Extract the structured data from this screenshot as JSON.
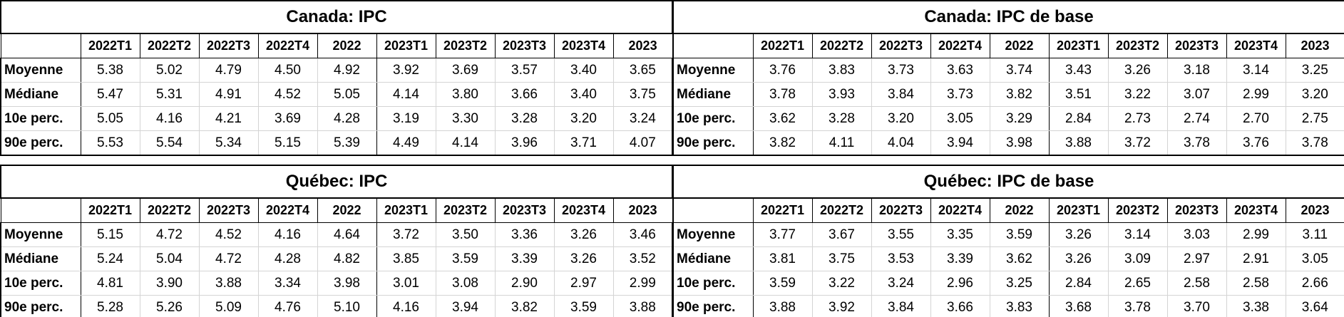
{
  "tables": [
    {
      "title": "Canada: IPC",
      "columns": [
        "2022T1",
        "2022T2",
        "2022T3",
        "2022T4",
        "2022",
        "2023T1",
        "2023T2",
        "2023T3",
        "2023T4",
        "2023"
      ],
      "rows": [
        {
          "label": "Moyenne",
          "values": [
            "5.38",
            "5.02",
            "4.79",
            "4.50",
            "4.92",
            "3.92",
            "3.69",
            "3.57",
            "3.40",
            "3.65"
          ]
        },
        {
          "label": "Médiane",
          "values": [
            "5.47",
            "5.31",
            "4.91",
            "4.52",
            "5.05",
            "4.14",
            "3.80",
            "3.66",
            "3.40",
            "3.75"
          ]
        },
        {
          "label": "10e perc.",
          "values": [
            "5.05",
            "4.16",
            "4.21",
            "3.69",
            "4.28",
            "3.19",
            "3.30",
            "3.28",
            "3.20",
            "3.24"
          ]
        },
        {
          "label": "90e perc.",
          "values": [
            "5.53",
            "5.54",
            "5.34",
            "5.15",
            "5.39",
            "4.49",
            "4.14",
            "3.96",
            "3.71",
            "4.07"
          ]
        }
      ]
    },
    {
      "title": "Canada: IPC de base",
      "columns": [
        "2022T1",
        "2022T2",
        "2022T3",
        "2022T4",
        "2022",
        "2023T1",
        "2023T2",
        "2023T3",
        "2023T4",
        "2023"
      ],
      "rows": [
        {
          "label": "Moyenne",
          "values": [
            "3.76",
            "3.83",
            "3.73",
            "3.63",
            "3.74",
            "3.43",
            "3.26",
            "3.18",
            "3.14",
            "3.25"
          ]
        },
        {
          "label": "Médiane",
          "values": [
            "3.78",
            "3.93",
            "3.84",
            "3.73",
            "3.82",
            "3.51",
            "3.22",
            "3.07",
            "2.99",
            "3.20"
          ]
        },
        {
          "label": "10e perc.",
          "values": [
            "3.62",
            "3.28",
            "3.20",
            "3.05",
            "3.29",
            "2.84",
            "2.73",
            "2.74",
            "2.70",
            "2.75"
          ]
        },
        {
          "label": "90e perc.",
          "values": [
            "3.82",
            "4.11",
            "4.04",
            "3.94",
            "3.98",
            "3.88",
            "3.72",
            "3.78",
            "3.76",
            "3.78"
          ]
        }
      ]
    },
    {
      "title": "Québec: IPC",
      "columns": [
        "2022T1",
        "2022T2",
        "2022T3",
        "2022T4",
        "2022",
        "2023T1",
        "2023T2",
        "2023T3",
        "2023T4",
        "2023"
      ],
      "rows": [
        {
          "label": "Moyenne",
          "values": [
            "5.15",
            "4.72",
            "4.52",
            "4.16",
            "4.64",
            "3.72",
            "3.50",
            "3.36",
            "3.26",
            "3.46"
          ]
        },
        {
          "label": "Médiane",
          "values": [
            "5.24",
            "5.04",
            "4.72",
            "4.28",
            "4.82",
            "3.85",
            "3.59",
            "3.39",
            "3.26",
            "3.52"
          ]
        },
        {
          "label": "10e perc.",
          "values": [
            "4.81",
            "3.90",
            "3.88",
            "3.34",
            "3.98",
            "3.01",
            "3.08",
            "2.90",
            "2.97",
            "2.99"
          ]
        },
        {
          "label": "90e perc.",
          "values": [
            "5.28",
            "5.26",
            "5.09",
            "4.76",
            "5.10",
            "4.16",
            "3.94",
            "3.82",
            "3.59",
            "3.88"
          ]
        }
      ]
    },
    {
      "title": "Québec: IPC de base",
      "columns": [
        "2022T1",
        "2022T2",
        "2022T3",
        "2022T4",
        "2022",
        "2023T1",
        "2023T2",
        "2023T3",
        "2023T4",
        "2023"
      ],
      "rows": [
        {
          "label": "Moyenne",
          "values": [
            "3.77",
            "3.67",
            "3.55",
            "3.35",
            "3.59",
            "3.26",
            "3.14",
            "3.03",
            "2.99",
            "3.11"
          ]
        },
        {
          "label": "Médiane",
          "values": [
            "3.81",
            "3.75",
            "3.53",
            "3.39",
            "3.62",
            "3.26",
            "3.09",
            "2.97",
            "2.91",
            "3.05"
          ]
        },
        {
          "label": "10e perc.",
          "values": [
            "3.59",
            "3.22",
            "3.24",
            "2.96",
            "3.25",
            "2.84",
            "2.65",
            "2.58",
            "2.58",
            "2.66"
          ]
        },
        {
          "label": "90e perc.",
          "values": [
            "3.88",
            "3.92",
            "3.84",
            "3.66",
            "3.83",
            "3.68",
            "3.78",
            "3.70",
            "3.38",
            "3.64"
          ]
        }
      ]
    }
  ]
}
